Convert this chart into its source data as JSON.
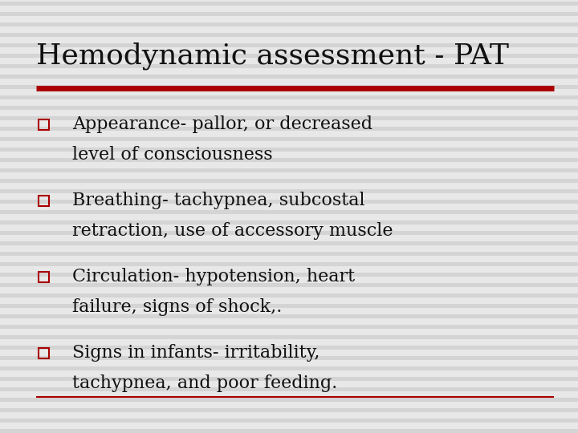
{
  "title": "Hemodynamic assessment - PAT",
  "title_fontsize": 26,
  "title_color": "#111111",
  "title_font": "DejaVu Serif",
  "background_color": "#e8e8e8",
  "stripe_color": "#d4d4d4",
  "title_underline_color": "#aa0000",
  "bottom_line_color": "#aa0000",
  "bullet_color": "#aa0000",
  "text_color": "#111111",
  "text_fontsize": 16,
  "bullets": [
    [
      "Appearance- pallor, or decreased",
      "level of consciousness"
    ],
    [
      "Breathing- tachypnea, subcostal",
      "retraction, use of accessory muscle"
    ],
    [
      "Circulation- hypotension, heart",
      "failure, signs of shock,."
    ],
    [
      "Signs in infants- irritability,",
      "tachypnea, and poor feeding."
    ]
  ]
}
